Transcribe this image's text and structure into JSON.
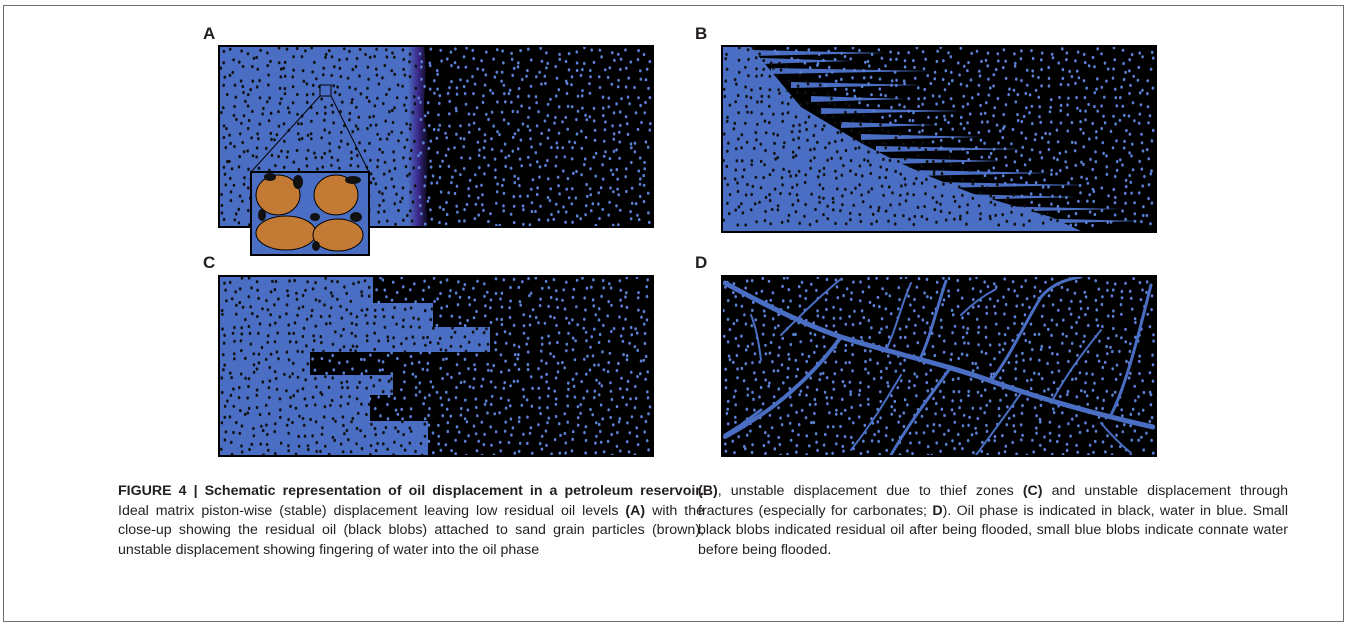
{
  "figure": {
    "panels": [
      {
        "letter": "A",
        "description_type": "stable-displacement"
      },
      {
        "letter": "B",
        "description_type": "fingering"
      },
      {
        "letter": "C",
        "description_type": "thief-zones"
      },
      {
        "letter": "D",
        "description_type": "fractures"
      }
    ],
    "colors": {
      "water": "#4a6ec3",
      "oil": "#000000",
      "sand_grain": "#c27a35",
      "residual_blob": "#111111",
      "connate_blob": "#5b80d6",
      "front_tint": "#3b2a8c"
    }
  },
  "caption": {
    "label": "FIGURE 4 | Schematic representation of oil displacement in a petroleum reservoir.",
    "seg1": " Ideal matrix piston-wise (stable) displacement leaving low residual oil levels ",
    "ref_a": "(A)",
    "seg2": " with the close-up showing the residual oil (black blobs) attached to sand grain particles (brown), unstable displacement showing fingering of water into the oil phase ",
    "ref_b": "(B)",
    "seg3": ", unstable displacement due to thief zones ",
    "ref_c": "(C)",
    "seg4": " and unstable displacement through fractures (especially for carbonates; ",
    "ref_d": "D",
    "seg5": "). Oil phase is indicated in black, water in blue. Small black blobs indicated residual oil after being flooded, small blue blobs indicate connate water before being flooded."
  }
}
